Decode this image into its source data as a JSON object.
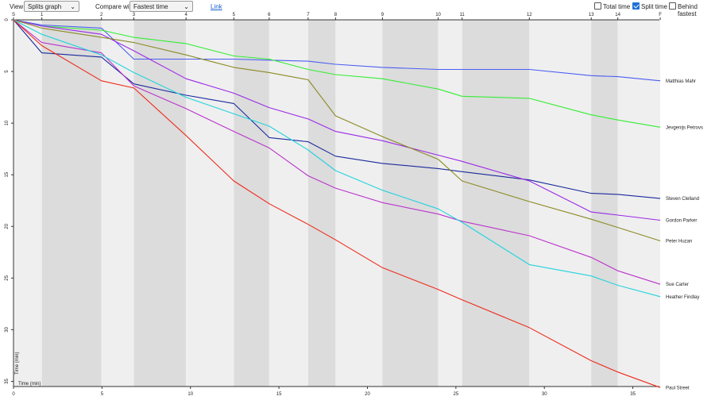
{
  "toolbar": {
    "view_label": "View:",
    "view_value": "Splits graph",
    "compare_label": "Compare with",
    "compare_value": "Fastest time",
    "link_label": "Link",
    "total_time_label": "Total time",
    "total_time_checked": false,
    "split_time_label": "Split time",
    "split_time_checked": true,
    "behind_fastest_label": "Behind fastest",
    "behind_fastest_checked": false
  },
  "chart_data": {
    "type": "line",
    "xlabel": "Time (min)",
    "ylabel": "Time (min)",
    "xlim": [
      0,
      36.5
    ],
    "ylim": [
      0,
      35.5
    ],
    "x_ticks": [
      0,
      5,
      10,
      15,
      20,
      25,
      30,
      35
    ],
    "y_ticks": [
      0,
      5,
      10,
      15,
      20,
      25,
      30,
      35
    ],
    "controls": [
      "S",
      "1",
      "2",
      "3",
      "4",
      "5",
      "6",
      "7",
      "8",
      "9",
      "10",
      "11",
      "12",
      "13",
      "14",
      "F"
    ],
    "control_times": [
      0,
      1.6,
      4.97,
      6.8,
      9.75,
      12.45,
      14.45,
      16.65,
      18.2,
      20.85,
      24.0,
      25.35,
      29.15,
      32.65,
      34.15,
      36.55
    ],
    "series": [
      {
        "name": "Matthias Mahr",
        "color": "#4a5ef2",
        "values": [
          0,
          0.5,
          0.8,
          3.8,
          3.8,
          3.8,
          3.9,
          4.0,
          4.3,
          4.6,
          4.8,
          4.8,
          4.8,
          5.4,
          5.5,
          5.9
        ]
      },
      {
        "name": "Jevgenijs Petrovs",
        "color": "#33ee33",
        "values": [
          0,
          0.6,
          1.0,
          1.7,
          2.3,
          3.5,
          3.8,
          4.8,
          5.3,
          5.7,
          6.7,
          7.4,
          7.6,
          9.2,
          9.7,
          10.4
        ]
      },
      {
        "name": "Steven Clelland",
        "color": "#1a2a9c",
        "values": [
          0,
          3.2,
          3.6,
          6.2,
          7.3,
          8.1,
          11.4,
          11.8,
          13.2,
          13.9,
          14.4,
          14.7,
          15.5,
          16.8,
          16.9,
          17.3
        ]
      },
      {
        "name": "Gordon Parker",
        "color": "#9a2ae6",
        "values": [
          0,
          0.6,
          1.4,
          3.0,
          5.7,
          7.1,
          8.5,
          9.6,
          10.8,
          11.7,
          13.1,
          13.7,
          15.6,
          18.6,
          18.9,
          19.4
        ]
      },
      {
        "name": "Peter Huzan",
        "color": "#8a8a24",
        "values": [
          0,
          0.8,
          1.7,
          2.2,
          3.4,
          4.6,
          5.1,
          5.8,
          9.3,
          11.3,
          13.5,
          15.6,
          17.6,
          19.3,
          20.1,
          21.4
        ]
      },
      {
        "name": "Sue Carter",
        "color": "#bb33cc",
        "values": [
          0,
          2.2,
          3.2,
          6.4,
          8.6,
          10.8,
          12.4,
          15.1,
          16.3,
          17.7,
          18.8,
          19.5,
          20.9,
          23.0,
          24.3,
          25.6
        ]
      },
      {
        "name": "Heather Findlay",
        "color": "#22d3dd",
        "values": [
          0,
          1.4,
          3.4,
          5.1,
          7.5,
          9.1,
          10.3,
          12.6,
          14.6,
          16.5,
          18.3,
          19.6,
          23.7,
          24.8,
          25.7,
          26.8
        ]
      },
      {
        "name": "Paul Street",
        "color": "#ee2a1a",
        "values": [
          0,
          2.5,
          5.9,
          6.6,
          11.2,
          15.6,
          17.8,
          19.8,
          21.3,
          24.0,
          26.1,
          27.1,
          29.8,
          33.0,
          34.1,
          35.6
        ]
      }
    ]
  }
}
